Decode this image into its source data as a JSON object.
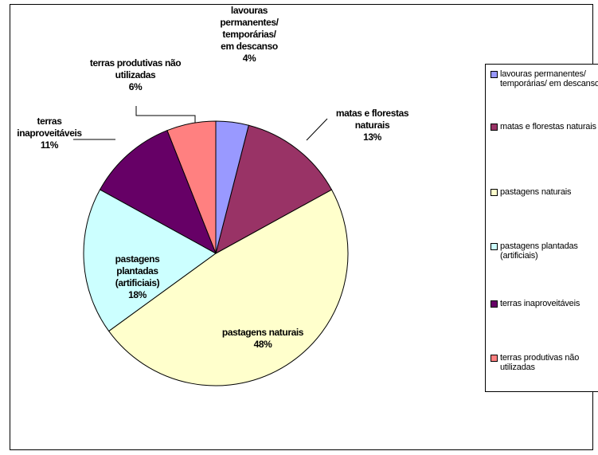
{
  "chart_data": {
    "type": "pie",
    "categories": [
      "lavouras permanentes/ temporárias/ em descanso",
      "matas e florestas naturais",
      "pastagens naturais",
      "pastagens plantadas (artificiais)",
      "terras inaproveitáveis",
      "terras produtivas não utilizadas"
    ],
    "values": [
      4,
      13,
      48,
      18,
      11,
      6
    ],
    "value_labels": [
      "4%",
      "13%",
      "48%",
      "18%",
      "11%",
      "6%"
    ],
    "colors": [
      "#9999ff",
      "#993366",
      "#ffffcc",
      "#ccffff",
      "#660066",
      "#ff8080"
    ],
    "legend": "right"
  }
}
